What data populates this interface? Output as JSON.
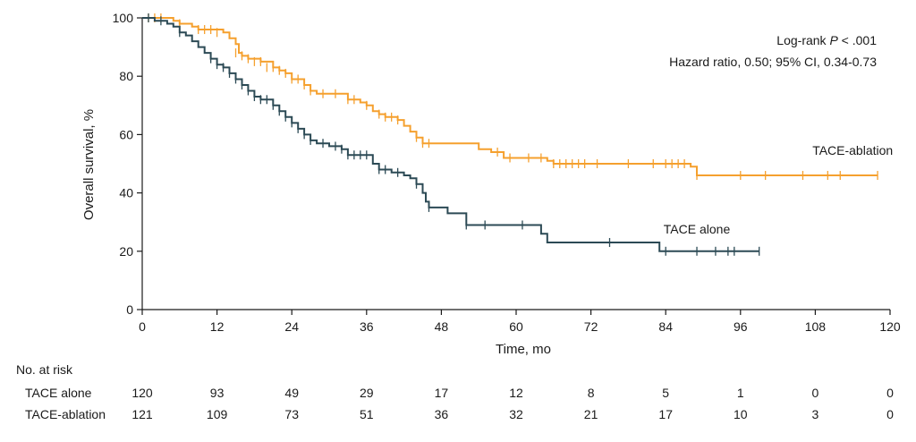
{
  "chart_data": {
    "type": "line",
    "subtype": "kaplan-meier",
    "title": "",
    "xlabel": "Time, mo",
    "ylabel": "Overall survival, %",
    "xlim": [
      0,
      120
    ],
    "ylim": [
      0,
      100
    ],
    "xticks": [
      0,
      12,
      24,
      36,
      48,
      60,
      72,
      84,
      96,
      108,
      120
    ],
    "yticks": [
      0,
      20,
      40,
      60,
      80,
      100
    ],
    "grid": false,
    "legend": "none",
    "annotations": {
      "logrank_prefix": "Log-rank ",
      "logrank_p": "P",
      "logrank_suffix": " < .001",
      "hazard": "Hazard ratio, 0.50; 95% CI, 0.34-0.73"
    },
    "series": [
      {
        "name": "TACE-ablation",
        "color": "#f5a02e",
        "label_at": [
          114,
          53
        ],
        "steps": [
          [
            0,
            100
          ],
          [
            5,
            99
          ],
          [
            6,
            98
          ],
          [
            8,
            97
          ],
          [
            9,
            96
          ],
          [
            13,
            95
          ],
          [
            14,
            93
          ],
          [
            15,
            91
          ],
          [
            15.5,
            88
          ],
          [
            16,
            87
          ],
          [
            17,
            86
          ],
          [
            19,
            85
          ],
          [
            21,
            83
          ],
          [
            22,
            82
          ],
          [
            23,
            81
          ],
          [
            24,
            79
          ],
          [
            26,
            77
          ],
          [
            27,
            75
          ],
          [
            28,
            74
          ],
          [
            33,
            72
          ],
          [
            35,
            71
          ],
          [
            36,
            70
          ],
          [
            37,
            68
          ],
          [
            38,
            67
          ],
          [
            39,
            66
          ],
          [
            41,
            65
          ],
          [
            42,
            63
          ],
          [
            43,
            61
          ],
          [
            44,
            59
          ],
          [
            45,
            57
          ],
          [
            54,
            55
          ],
          [
            56,
            54
          ],
          [
            58,
            52
          ],
          [
            65,
            51
          ],
          [
            66,
            50
          ],
          [
            88,
            49
          ],
          [
            89,
            46
          ],
          [
            118,
            46
          ]
        ],
        "censors": [
          [
            1,
            100
          ],
          [
            2,
            100
          ],
          [
            3,
            100
          ],
          [
            6,
            98
          ],
          [
            9,
            96
          ],
          [
            10,
            96
          ],
          [
            11,
            96
          ],
          [
            12,
            95
          ],
          [
            15,
            88
          ],
          [
            16,
            87
          ],
          [
            17,
            86
          ],
          [
            18,
            85
          ],
          [
            19,
            85
          ],
          [
            20,
            83
          ],
          [
            21,
            83
          ],
          [
            22,
            82
          ],
          [
            23,
            81
          ],
          [
            24,
            79
          ],
          [
            25,
            79
          ],
          [
            26,
            77
          ],
          [
            27,
            75
          ],
          [
            29,
            74
          ],
          [
            31,
            74
          ],
          [
            33,
            72
          ],
          [
            34,
            72
          ],
          [
            36,
            70
          ],
          [
            38,
            67
          ],
          [
            39,
            66
          ],
          [
            40,
            66
          ],
          [
            41,
            65
          ],
          [
            44,
            59
          ],
          [
            45,
            57
          ],
          [
            46,
            57
          ],
          [
            57,
            54
          ],
          [
            59,
            52
          ],
          [
            62,
            52
          ],
          [
            64,
            52
          ],
          [
            66,
            50
          ],
          [
            67,
            50
          ],
          [
            68,
            50
          ],
          [
            69,
            50
          ],
          [
            70,
            50
          ],
          [
            71,
            50
          ],
          [
            73,
            50
          ],
          [
            78,
            50
          ],
          [
            82,
            50
          ],
          [
            84,
            50
          ],
          [
            85,
            50
          ],
          [
            86,
            50
          ],
          [
            87,
            50
          ],
          [
            89,
            46
          ],
          [
            96,
            46
          ],
          [
            100,
            46
          ],
          [
            106,
            46
          ],
          [
            110,
            46
          ],
          [
            112,
            46
          ],
          [
            118,
            46
          ]
        ]
      },
      {
        "name": "TACE alone",
        "color": "#2c4a55",
        "label_at": [
          89,
          26
        ],
        "steps": [
          [
            0,
            100
          ],
          [
            2,
            99
          ],
          [
            4,
            98
          ],
          [
            5,
            97
          ],
          [
            6,
            95
          ],
          [
            7,
            94
          ],
          [
            8,
            92
          ],
          [
            9,
            90
          ],
          [
            10,
            88
          ],
          [
            11,
            86
          ],
          [
            12,
            84
          ],
          [
            13,
            83
          ],
          [
            14,
            81
          ],
          [
            15,
            79
          ],
          [
            16,
            77
          ],
          [
            17,
            75
          ],
          [
            18,
            73
          ],
          [
            19,
            72
          ],
          [
            21,
            70
          ],
          [
            22,
            68
          ],
          [
            23,
            66
          ],
          [
            24,
            64
          ],
          [
            25,
            62
          ],
          [
            26,
            60
          ],
          [
            27,
            58
          ],
          [
            28,
            57
          ],
          [
            30,
            56
          ],
          [
            32,
            55
          ],
          [
            33,
            53
          ],
          [
            36,
            53
          ],
          [
            37,
            50
          ],
          [
            38,
            48
          ],
          [
            40,
            47
          ],
          [
            42,
            46
          ],
          [
            43,
            45
          ],
          [
            44,
            43
          ],
          [
            45,
            40
          ],
          [
            45.5,
            37
          ],
          [
            46,
            35
          ],
          [
            49,
            33
          ],
          [
            52,
            29
          ],
          [
            64,
            26
          ],
          [
            65,
            23
          ],
          [
            83,
            20
          ],
          [
            99,
            20
          ]
        ],
        "censors": [
          [
            1,
            100
          ],
          [
            3,
            99
          ],
          [
            6,
            95
          ],
          [
            11,
            86
          ],
          [
            12,
            84
          ],
          [
            13,
            83
          ],
          [
            14,
            81
          ],
          [
            15,
            79
          ],
          [
            16,
            77
          ],
          [
            17,
            75
          ],
          [
            18,
            73
          ],
          [
            19,
            72
          ],
          [
            20,
            72
          ],
          [
            21,
            70
          ],
          [
            22,
            68
          ],
          [
            23,
            66
          ],
          [
            24,
            64
          ],
          [
            25,
            62
          ],
          [
            26,
            60
          ],
          [
            27,
            58
          ],
          [
            29,
            57
          ],
          [
            31,
            56
          ],
          [
            32,
            55
          ],
          [
            33,
            53
          ],
          [
            34,
            53
          ],
          [
            35,
            53
          ],
          [
            36,
            53
          ],
          [
            38,
            48
          ],
          [
            39,
            48
          ],
          [
            41,
            47
          ],
          [
            44,
            43
          ],
          [
            46,
            35
          ],
          [
            52,
            29
          ],
          [
            55,
            29
          ],
          [
            61,
            29
          ],
          [
            75,
            23
          ],
          [
            84,
            20
          ],
          [
            89,
            20
          ],
          [
            92,
            20
          ],
          [
            94,
            20
          ],
          [
            95,
            20
          ],
          [
            99,
            20
          ]
        ]
      }
    ]
  },
  "risk_table": {
    "title": "No. at risk",
    "times": [
      0,
      12,
      24,
      36,
      48,
      60,
      72,
      84,
      96,
      108,
      120
    ],
    "rows": [
      {
        "label": "TACE alone",
        "counts": [
          "120",
          "93",
          "49",
          "29",
          "17",
          "12",
          "8",
          "5",
          "1",
          "0",
          "0"
        ]
      },
      {
        "label": "TACE-ablation",
        "counts": [
          "121",
          "109",
          "73",
          "51",
          "36",
          "32",
          "21",
          "17",
          "10",
          "3",
          "0"
        ]
      }
    ]
  }
}
